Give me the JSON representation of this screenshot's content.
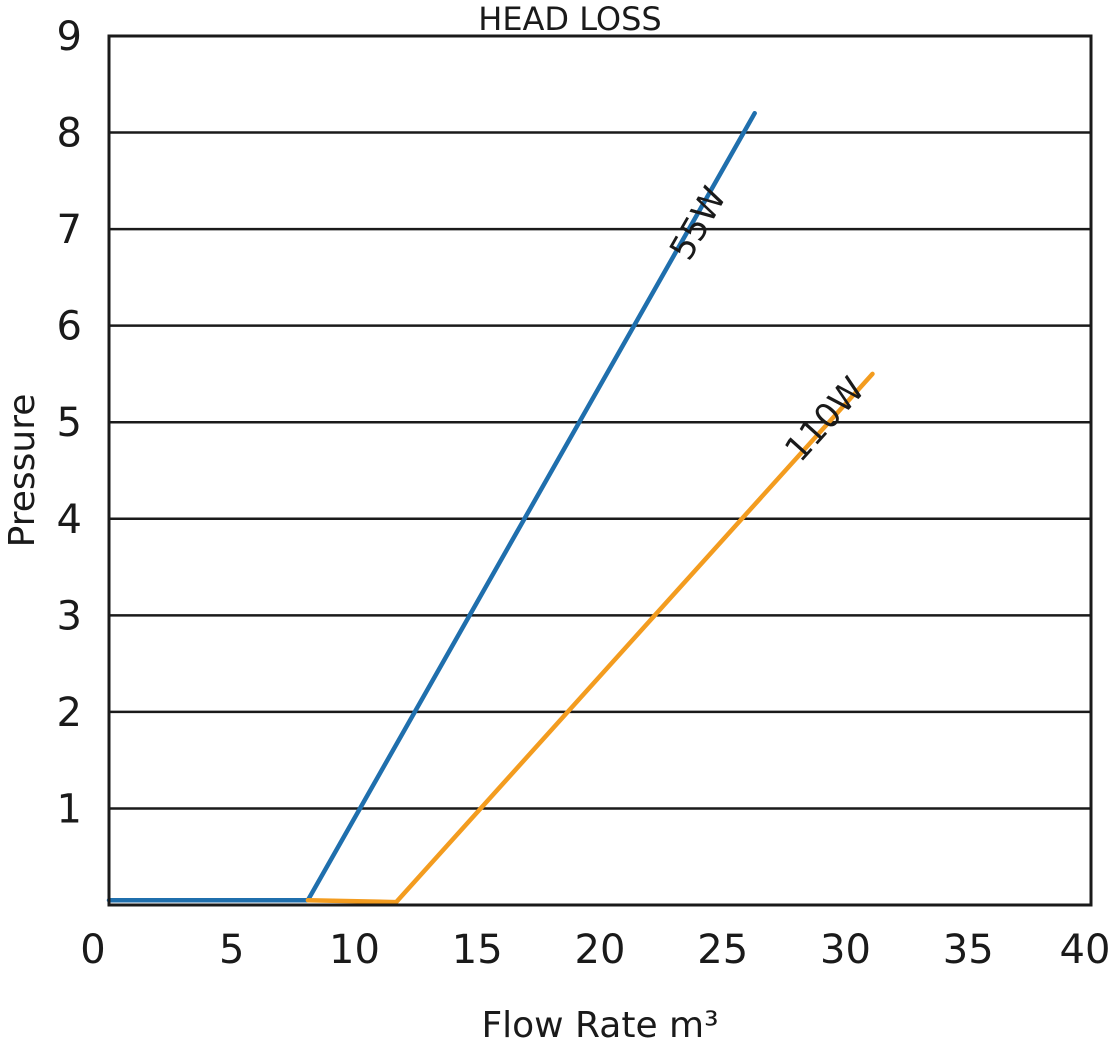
{
  "chart_data": {
    "type": "line",
    "title": "HEAD LOSS",
    "xlabel": "Flow Rate m³",
    "ylabel": "Pressure",
    "xlim": [
      0,
      40
    ],
    "ylim": [
      0,
      9
    ],
    "xticks": [
      "0",
      "5",
      "10",
      "15",
      "20",
      "25",
      "30",
      "35",
      "40"
    ],
    "yticks": [
      "1",
      "2",
      "3",
      "4",
      "5",
      "6",
      "7",
      "8",
      "9"
    ],
    "grid": "horizontal",
    "series": [
      {
        "name": "55W",
        "color": "#1f6fad",
        "x": [
          0,
          8.1,
          26.3
        ],
        "y": [
          0.05,
          0.05,
          8.2
        ]
      },
      {
        "name": "110W",
        "color": "#f39c1f",
        "x": [
          8.1,
          11.7,
          31.1
        ],
        "y": [
          0.05,
          0.03,
          5.5
        ]
      }
    ],
    "annotations": [
      {
        "text": "55W",
        "x": 24.4,
        "y": 7.0,
        "series": 0
      },
      {
        "text": "110W",
        "x": 29.5,
        "y": 4.95,
        "series": 1
      }
    ]
  }
}
